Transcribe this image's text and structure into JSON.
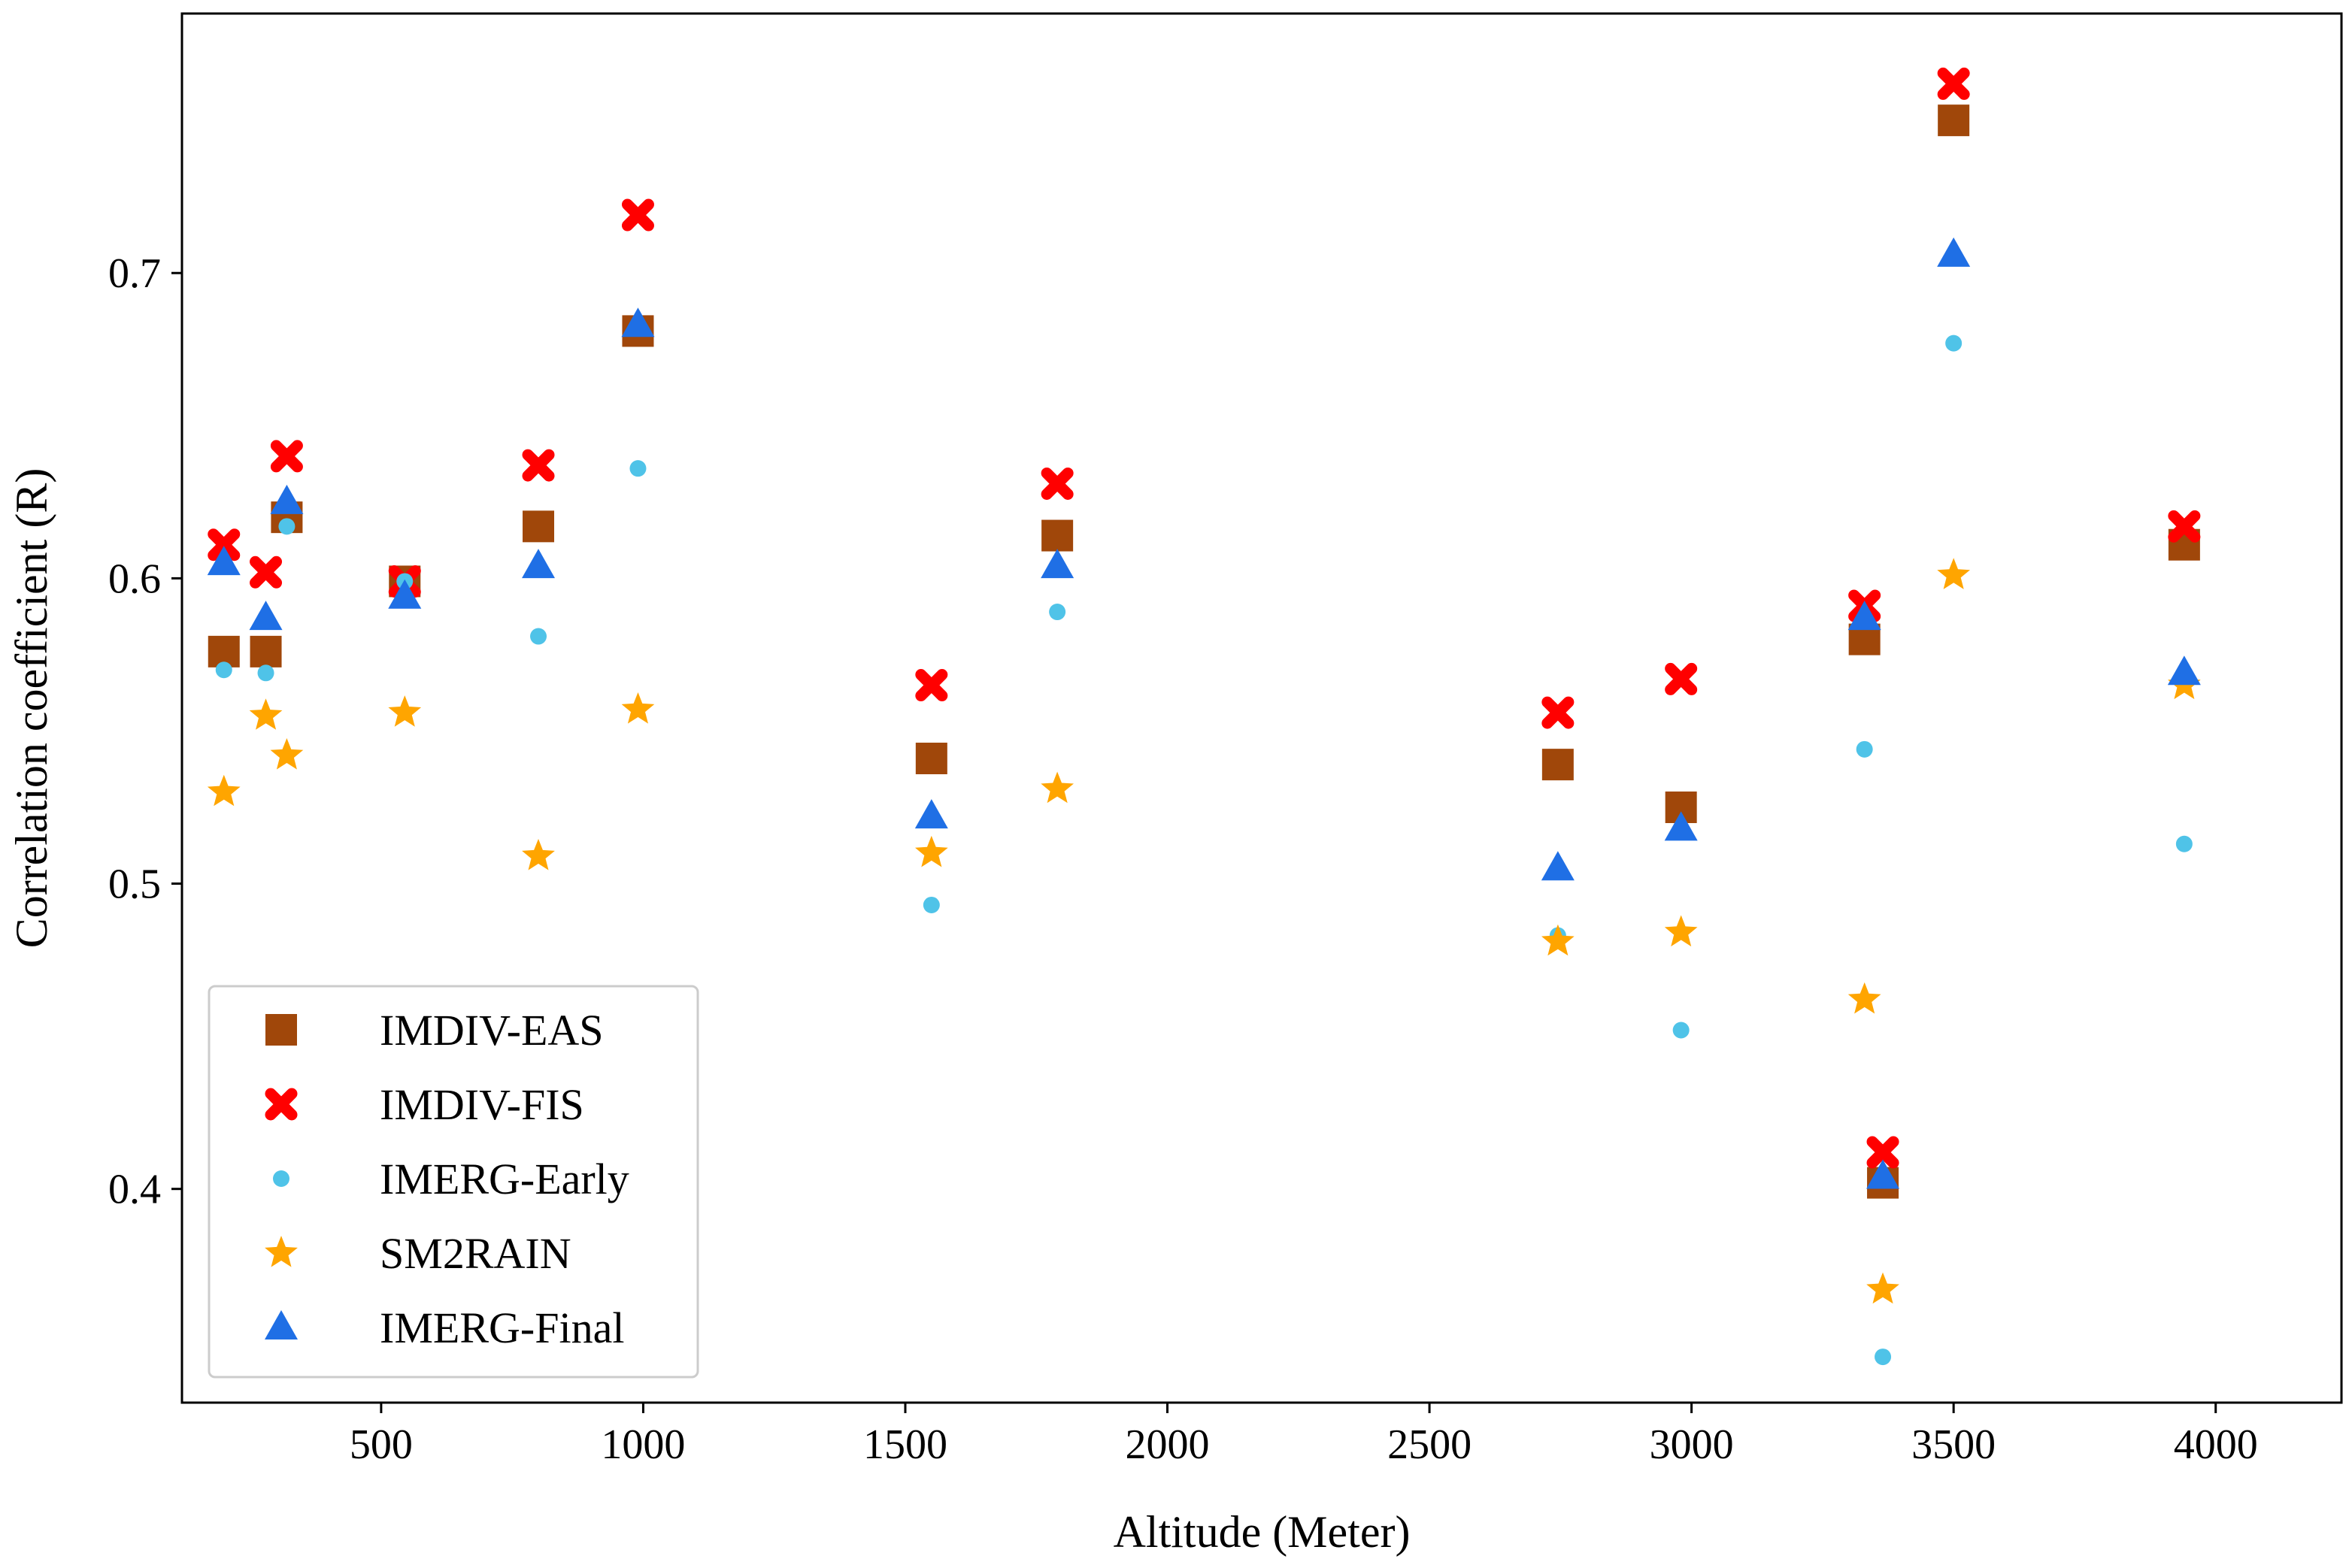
{
  "chart_data": {
    "type": "scatter",
    "title": "",
    "xlabel": "Altitude (Meter)",
    "ylabel": "Correlation coefficient (R)",
    "xlim": [
      120,
      4240
    ],
    "ylim": [
      0.33,
      0.785
    ],
    "xticks": [
      500,
      1000,
      1500,
      2000,
      2500,
      3000,
      3500,
      4000
    ],
    "xtick_labels": [
      "500",
      "1000",
      "1500",
      "2000",
      "2500",
      "3000",
      "3500",
      "4000"
    ],
    "yticks": [
      0.4,
      0.5,
      0.6,
      0.7
    ],
    "ytick_labels": [
      "0.4",
      "0.5",
      "0.6",
      "0.7"
    ],
    "grid": false,
    "legend_position": "lower-left",
    "x": [
      200,
      280,
      320,
      545,
      800,
      990,
      1550,
      1790,
      2745,
      2980,
      3330,
      3365,
      3500,
      3940
    ],
    "series": [
      {
        "name": "IMDIV-EAS",
        "marker": "square",
        "color": "#a0470a",
        "values": [
          0.576,
          0.576,
          0.62,
          0.599,
          0.617,
          0.681,
          0.541,
          0.614,
          0.539,
          0.525,
          0.58,
          0.402,
          0.75,
          0.611
        ]
      },
      {
        "name": "IMDIV-FIS",
        "marker": "x",
        "color": "#ff0000",
        "values": [
          0.611,
          0.602,
          0.64,
          0.599,
          0.637,
          0.719,
          0.565,
          0.631,
          0.556,
          0.567,
          0.591,
          0.412,
          0.762,
          0.617
        ]
      },
      {
        "name": "IMERG-Early",
        "marker": "circle",
        "color": "#4fc3e8",
        "values": [
          0.57,
          0.569,
          0.617,
          0.599,
          0.581,
          0.636,
          0.493,
          0.589,
          0.483,
          0.452,
          0.544,
          0.345,
          0.677,
          0.513
        ]
      },
      {
        "name": "SM2RAIN",
        "marker": "star",
        "color": "#ffa500",
        "values": [
          0.53,
          0.555,
          0.542,
          0.556,
          0.509,
          0.557,
          0.51,
          0.531,
          0.481,
          0.484,
          0.462,
          0.367,
          0.601,
          0.565
        ]
      },
      {
        "name": "IMERG-Final",
        "marker": "triangle",
        "color": "#1f6fe5",
        "values": [
          0.605,
          0.587,
          0.625,
          0.594,
          0.604,
          0.683,
          0.522,
          0.604,
          0.505,
          0.518,
          0.587,
          0.404,
          0.706,
          0.569
        ]
      }
    ]
  }
}
